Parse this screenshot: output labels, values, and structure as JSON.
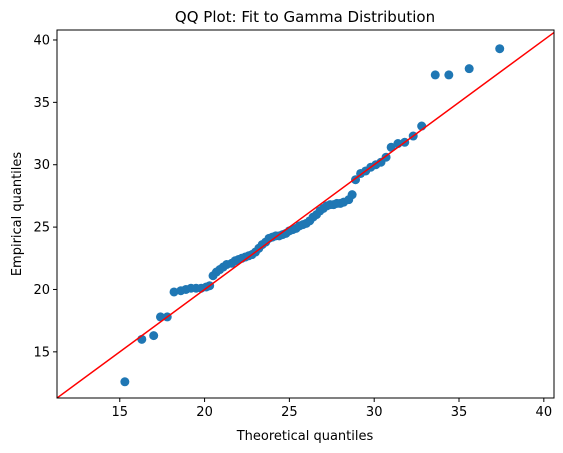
{
  "chart_data": {
    "type": "scatter",
    "title": "QQ Plot: Fit to Gamma Distribution",
    "xlabel": "Theoretical quantiles",
    "ylabel": "Empirical quantiles",
    "xlim": [
      11.3,
      40.6
    ],
    "ylim": [
      11.3,
      40.8
    ],
    "xticks": [
      15,
      20,
      25,
      30,
      35,
      40
    ],
    "yticks": [
      15,
      20,
      25,
      30,
      35,
      40
    ],
    "grid": false,
    "point_color": "#1f77b4",
    "line_color": "#ff0000",
    "reference_line": {
      "slope": 1,
      "intercept": 0
    },
    "points": [
      [
        15.3,
        12.6
      ],
      [
        16.3,
        16.0
      ],
      [
        17.0,
        16.3
      ],
      [
        17.4,
        17.8
      ],
      [
        17.8,
        17.8
      ],
      [
        18.2,
        19.8
      ],
      [
        18.6,
        19.9
      ],
      [
        18.9,
        20.0
      ],
      [
        19.2,
        20.1
      ],
      [
        19.5,
        20.1
      ],
      [
        19.8,
        20.1
      ],
      [
        20.1,
        20.2
      ],
      [
        20.3,
        20.3
      ],
      [
        20.5,
        21.1
      ],
      [
        20.7,
        21.4
      ],
      [
        20.9,
        21.6
      ],
      [
        21.1,
        21.8
      ],
      [
        21.3,
        22.0
      ],
      [
        21.6,
        22.1
      ],
      [
        21.8,
        22.3
      ],
      [
        22.0,
        22.4
      ],
      [
        22.2,
        22.5
      ],
      [
        22.4,
        22.6
      ],
      [
        22.6,
        22.7
      ],
      [
        22.8,
        22.8
      ],
      [
        23.0,
        23.0
      ],
      [
        23.2,
        23.3
      ],
      [
        23.4,
        23.6
      ],
      [
        23.6,
        23.8
      ],
      [
        23.8,
        24.1
      ],
      [
        24.0,
        24.2
      ],
      [
        24.2,
        24.3
      ],
      [
        24.4,
        24.3
      ],
      [
        24.6,
        24.4
      ],
      [
        24.8,
        24.5
      ],
      [
        25.0,
        24.7
      ],
      [
        25.2,
        24.8
      ],
      [
        25.4,
        24.9
      ],
      [
        25.6,
        25.1
      ],
      [
        25.8,
        25.2
      ],
      [
        26.0,
        25.3
      ],
      [
        26.2,
        25.5
      ],
      [
        26.4,
        25.8
      ],
      [
        26.6,
        26.0
      ],
      [
        26.8,
        26.3
      ],
      [
        27.0,
        26.5
      ],
      [
        27.2,
        26.7
      ],
      [
        27.4,
        26.8
      ],
      [
        27.6,
        26.8
      ],
      [
        27.8,
        26.9
      ],
      [
        28.0,
        26.9
      ],
      [
        28.2,
        27.0
      ],
      [
        28.5,
        27.2
      ],
      [
        28.7,
        27.6
      ],
      [
        28.9,
        28.8
      ],
      [
        29.2,
        29.3
      ],
      [
        29.5,
        29.5
      ],
      [
        29.8,
        29.8
      ],
      [
        30.1,
        30.0
      ],
      [
        30.4,
        30.2
      ],
      [
        30.7,
        30.6
      ],
      [
        31.0,
        31.4
      ],
      [
        31.4,
        31.7
      ],
      [
        31.8,
        31.8
      ],
      [
        32.3,
        32.3
      ],
      [
        32.8,
        33.1
      ],
      [
        33.6,
        37.2
      ],
      [
        34.4,
        37.2
      ],
      [
        35.6,
        37.7
      ],
      [
        37.4,
        39.3
      ]
    ]
  }
}
